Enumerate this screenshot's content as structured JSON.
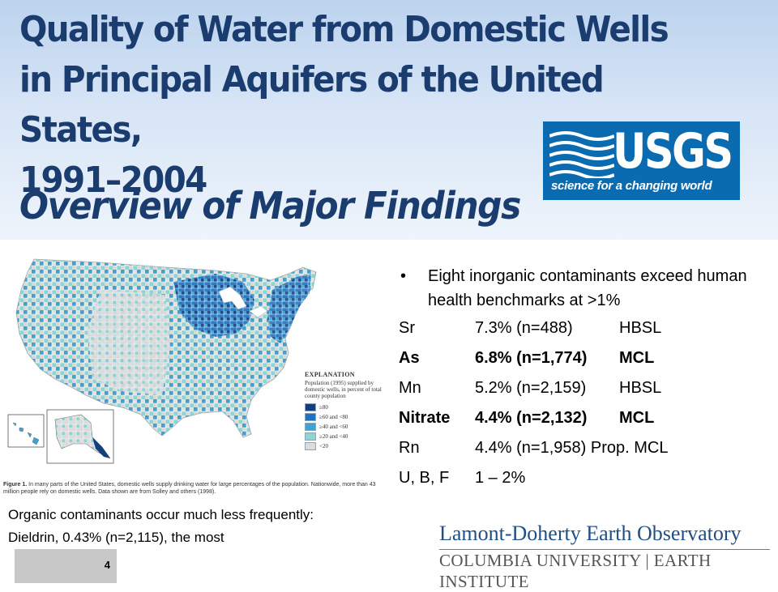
{
  "slide": {
    "title_line1": "Quality of Water from Domestic Wells",
    "title_line2": "in Principal Aquifers of the United States,",
    "title_line3": "1991–2004",
    "subtitle": "Overview of Major Findings",
    "slide_number": "4"
  },
  "usgs_logo": {
    "wordmark": "USGS",
    "tagline": "science for a changing world",
    "color": "#0b6bb1"
  },
  "map": {
    "legend": {
      "title": "EXPLANATION",
      "description": "Population (1995) supplied by domestic wells, in percent of total county population",
      "classes": [
        {
          "label": "≥80",
          "color": "#123f82"
        },
        {
          "label": "≥60 and <80",
          "color": "#1c73c4"
        },
        {
          "label": "≥40 and <60",
          "color": "#3fa2d6"
        },
        {
          "label": "≥20 and <40",
          "color": "#8fd3d3"
        },
        {
          "label": "<20",
          "color": "#dcdcdc"
        }
      ]
    },
    "caption": {
      "label": "Figure 1.",
      "text": "In many parts of the United States, domestic wells supply drinking water for large percentages of the population. Nationwide, more than 43 million people rely on domestic wells. Data shown are from Solley and others (1998)."
    }
  },
  "findings": {
    "bullet_symbol": "•",
    "bullet": "Eight inorganic contaminants exceed human health benchmarks at >1%",
    "contaminants": [
      {
        "name": "Sr",
        "detail": "7.3% (n=488)",
        "benchmark": "HBSL",
        "bold": false
      },
      {
        "name": "As",
        "detail": "6.8% (n=1,774)",
        "benchmark": "MCL",
        "bold": true
      },
      {
        "name": "Mn",
        "detail": "5.2% (n=2,159)",
        "benchmark": "HBSL",
        "bold": false
      },
      {
        "name": "Nitrate",
        "detail": "4.4% (n=2,132)",
        "benchmark": "MCL",
        "bold": true
      },
      {
        "name": "Rn",
        "detail": "4.4% (n=1,958) Prop. MCL",
        "benchmark": "",
        "bold": false
      },
      {
        "name": "U, B, F",
        "detail": "1 – 2%",
        "benchmark": "",
        "bold": false
      }
    ],
    "organic_line1": "Organic contaminants occur much less frequently:",
    "organic_line2": "Dieldrin,  0.43% (n=2,115), the most"
  },
  "ldeo_logo": {
    "name": "Lamont-Doherty Earth Observatory",
    "affiliation": "COLUMBIA UNIVERSITY | EARTH INSTITUTE"
  }
}
